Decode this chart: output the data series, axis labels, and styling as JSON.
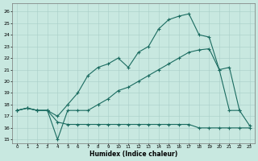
{
  "xlabel": "Humidex (Indice chaleur)",
  "background_color": "#c8e8e0",
  "grid_color": "#a8cec8",
  "line_color": "#1a6b60",
  "xlim": [
    -0.5,
    23.5
  ],
  "ylim": [
    14.7,
    26.7
  ],
  "xticks": [
    0,
    1,
    2,
    3,
    4,
    5,
    6,
    7,
    8,
    9,
    10,
    11,
    12,
    13,
    14,
    15,
    16,
    17,
    18,
    19,
    20,
    21,
    22,
    23
  ],
  "yticks": [
    15,
    16,
    17,
    18,
    19,
    20,
    21,
    22,
    23,
    24,
    25,
    26
  ],
  "line1_x": [
    0,
    1,
    2,
    3,
    4,
    5,
    6,
    7,
    8,
    9,
    10,
    11,
    12,
    13,
    14,
    15,
    16,
    17,
    18,
    19,
    20,
    21,
    22
  ],
  "line1_y": [
    17.5,
    17.7,
    17.5,
    17.5,
    17.0,
    18.0,
    19.0,
    20.5,
    21.2,
    21.5,
    22.0,
    21.2,
    22.5,
    23.0,
    24.5,
    25.3,
    25.6,
    25.8,
    24.0,
    23.8,
    21.0,
    17.5,
    17.5
  ],
  "line2_x": [
    0,
    1,
    2,
    3,
    4,
    5,
    6,
    7,
    8,
    9,
    10,
    11,
    12,
    13,
    14,
    15,
    16,
    17,
    18,
    19,
    20,
    21,
    22,
    23
  ],
  "line2_y": [
    17.5,
    17.7,
    17.5,
    17.5,
    15.0,
    17.5,
    17.5,
    17.5,
    18.0,
    18.5,
    19.2,
    19.5,
    20.0,
    20.5,
    21.0,
    21.5,
    22.0,
    22.5,
    22.7,
    22.8,
    21.0,
    21.2,
    17.5,
    16.2
  ],
  "line3_x": [
    0,
    1,
    2,
    3,
    4,
    5,
    6,
    7,
    8,
    9,
    10,
    11,
    12,
    13,
    14,
    15,
    16,
    17,
    18,
    19,
    20,
    21,
    22,
    23
  ],
  "line3_y": [
    17.5,
    17.7,
    17.5,
    17.5,
    16.5,
    16.3,
    16.3,
    16.3,
    16.3,
    16.3,
    16.3,
    16.3,
    16.3,
    16.3,
    16.3,
    16.3,
    16.3,
    16.3,
    16.0,
    16.0,
    16.0,
    16.0,
    16.0,
    16.0
  ]
}
